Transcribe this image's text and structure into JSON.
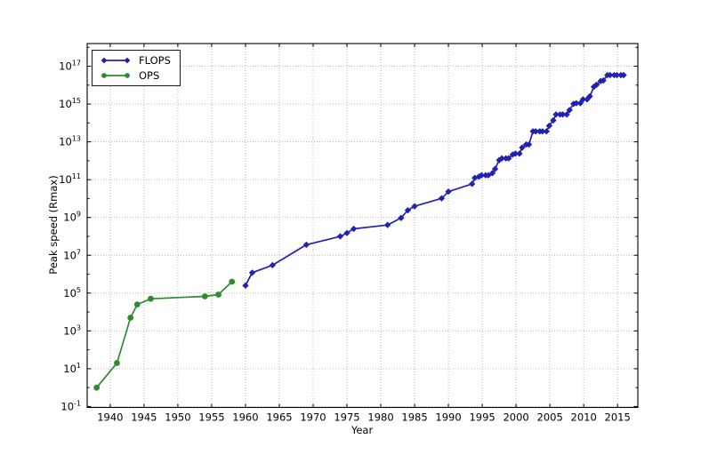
{
  "figure": {
    "background": "#ffffff",
    "plot_border_color": "#000000",
    "grid_color": "#b3b3b3"
  },
  "legend": {
    "position": "upper-left",
    "items": [
      {
        "label": "FLOPS",
        "color": "#2121b2",
        "marker": "diamond"
      },
      {
        "label": "OPS",
        "color": "#2e8b2e",
        "marker": "circle"
      }
    ]
  },
  "chart_data": {
    "type": "line",
    "title": "",
    "xlabel": "Year",
    "ylabel": "Peak speed (Rmax)",
    "y_scale": "log",
    "grid": "dotted",
    "legend_position": "upper-left",
    "xlim": [
      1936.6,
      2018.0
    ],
    "ylim_exponents": [
      -1.05,
      18.2
    ],
    "x_ticks": [
      1940,
      1945,
      1950,
      1955,
      1960,
      1965,
      1970,
      1975,
      1980,
      1985,
      1990,
      1995,
      2000,
      2005,
      2010,
      2015
    ],
    "y_tick_exponents": [
      -1,
      1,
      3,
      5,
      7,
      9,
      11,
      13,
      15,
      17
    ],
    "y_tick_base": "10",
    "series": [
      {
        "name": "OPS",
        "color": "#2e8b2e",
        "marker": "circle",
        "points": [
          [
            1938,
            1
          ],
          [
            1941,
            20
          ],
          [
            1943,
            5000
          ],
          [
            1944,
            25000
          ],
          [
            1946,
            50000
          ],
          [
            1954,
            67000
          ],
          [
            1956,
            83000
          ],
          [
            1958,
            400000
          ]
        ]
      },
      {
        "name": "FLOPS",
        "color": "#2121b2",
        "marker": "diamond",
        "points": [
          [
            1960,
            250000.0
          ],
          [
            1961,
            1200000.0
          ],
          [
            1964,
            3000000.0
          ],
          [
            1969,
            36000000.0
          ],
          [
            1974,
            100000000.0
          ],
          [
            1975,
            150000000.0
          ],
          [
            1976,
            250000000.0
          ],
          [
            1981,
            400000000.0
          ],
          [
            1983,
            941000000.0
          ],
          [
            1984,
            2400000000.0
          ],
          [
            1985,
            3900000000.0
          ],
          [
            1989,
            10300000000.0
          ],
          [
            1990,
            23200000000.0
          ],
          [
            1993.5,
            59700000000.0
          ],
          [
            1993.9,
            124000000000.0
          ],
          [
            1994.5,
            143400000000.0
          ],
          [
            1994.9,
            170400000000.0
          ],
          [
            1995.5,
            170400000000.0
          ],
          [
            1995.9,
            170400000000.0
          ],
          [
            1996.5,
            220400000000.0
          ],
          [
            1996.9,
            368200000000.0
          ],
          [
            1997.5,
            1068000000000.0
          ],
          [
            1997.9,
            1338000000000.0
          ],
          [
            1998.5,
            1338000000000.0
          ],
          [
            1998.9,
            1338000000000.0
          ],
          [
            1999.5,
            2121300000000.0
          ],
          [
            1999.9,
            2379600000000.0
          ],
          [
            2000.5,
            2379600000000.0
          ],
          [
            2000.9,
            4938000000000.0
          ],
          [
            2001.5,
            7226000000000.0
          ],
          [
            2001.9,
            7226000000000.0
          ],
          [
            2002.5,
            35860000000000.0
          ],
          [
            2002.9,
            35860000000000.0
          ],
          [
            2003.5,
            35860000000000.0
          ],
          [
            2003.9,
            35860000000000.0
          ],
          [
            2004.5,
            35860000000000.0
          ],
          [
            2004.9,
            70720000000000.0
          ],
          [
            2005.5,
            136800000000000.0
          ],
          [
            2005.9,
            280600000000000.0
          ],
          [
            2006.5,
            280600000000000.0
          ],
          [
            2006.9,
            280600000000000.0
          ],
          [
            2007.5,
            280600000000000.0
          ],
          [
            2007.9,
            478200000000000.0
          ],
          [
            2008.5,
            1026000000000000.0
          ],
          [
            2008.9,
            1105000000000000.0
          ],
          [
            2009.5,
            1105000000000000.0
          ],
          [
            2009.9,
            1759000000000000.0
          ],
          [
            2010.5,
            1759000000000000.0
          ],
          [
            2010.9,
            2566000000000000.0
          ],
          [
            2011.5,
            8162000000000000.0
          ],
          [
            2011.9,
            1.051e+16
          ],
          [
            2012.5,
            1.632e+16
          ],
          [
            2012.9,
            1.759e+16
          ],
          [
            2013.5,
            3.386e+16
          ],
          [
            2013.9,
            3.386e+16
          ],
          [
            2014.5,
            3.386e+16
          ],
          [
            2014.9,
            3.386e+16
          ],
          [
            2015.5,
            3.386e+16
          ],
          [
            2015.9,
            3.386e+16
          ]
        ]
      }
    ]
  }
}
